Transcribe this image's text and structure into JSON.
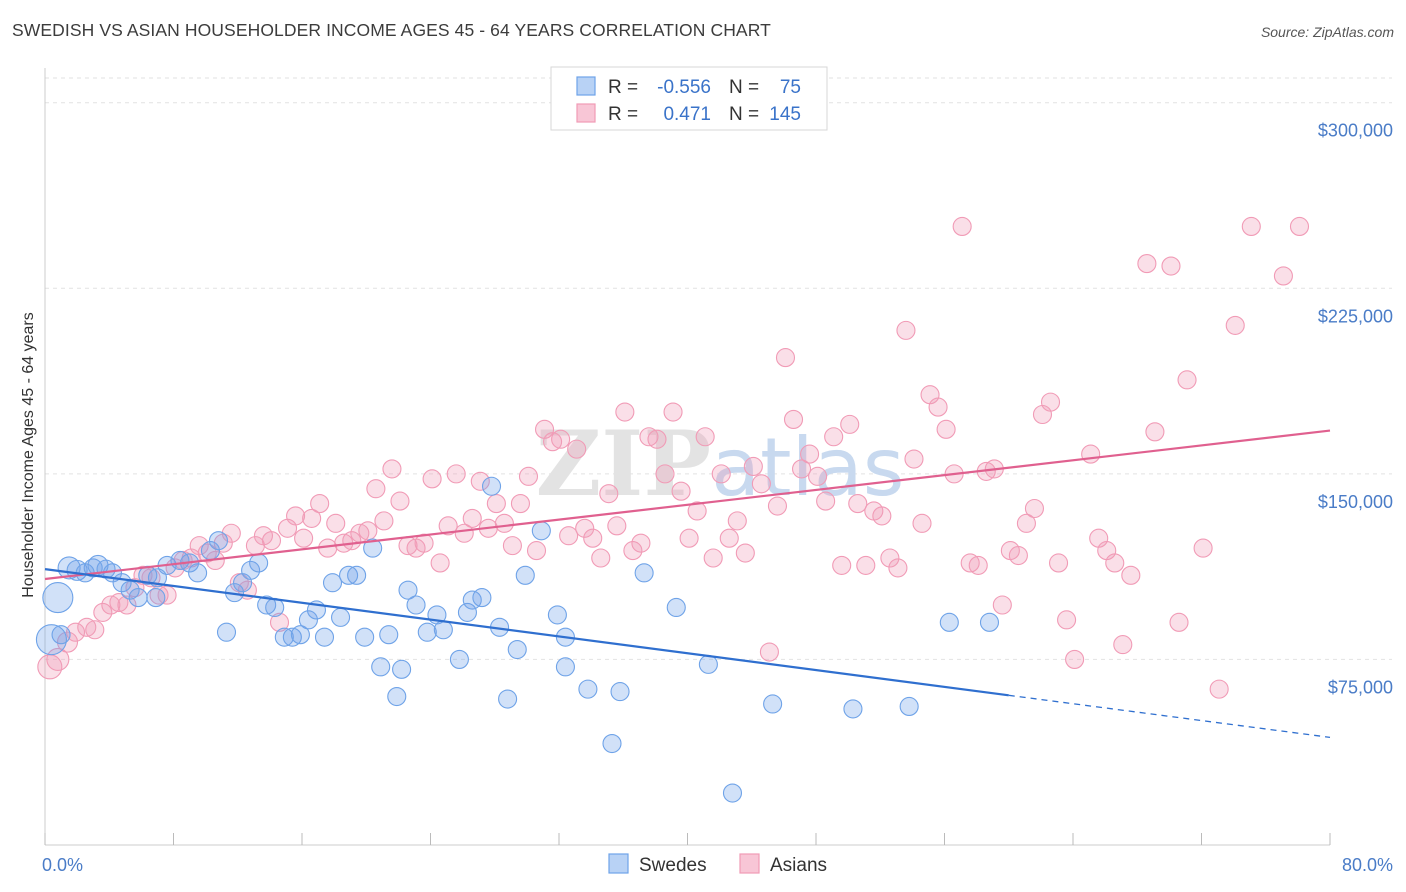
{
  "header": {
    "title": "SWEDISH VS ASIAN HOUSEHOLDER INCOME AGES 45 - 64 YEARS CORRELATION CHART",
    "source": "Source: ZipAtlas.com"
  },
  "legend": {
    "rows": [
      {
        "r_label": "R =",
        "r_value": "-0.556",
        "n_label": "N =",
        "n_value": "75"
      },
      {
        "r_label": "R =",
        "r_value": "0.471",
        "n_label": "N =",
        "n_value": "145"
      }
    ],
    "bottom": [
      "Swedes",
      "Asians"
    ]
  },
  "chart_data": {
    "type": "scatter",
    "title": "SWEDISH VS ASIAN HOUSEHOLDER INCOME AGES 45 - 64 YEARS CORRELATION CHART",
    "ylabel": "Householder Income Ages 45 - 64 years",
    "xlabel": "",
    "xlim": [
      0,
      80
    ],
    "ylim": [
      0,
      310000
    ],
    "x_tick_labels": [
      "0.0%",
      "80.0%"
    ],
    "y_ticks": [
      75000,
      150000,
      225000,
      300000
    ],
    "y_tick_labels": [
      "$75,000",
      "$150,000",
      "$225,000",
      "$300,000"
    ],
    "grid": "horizontal dashed",
    "legend_position": "top-center",
    "colors": {
      "swedes": "#6fa3e8",
      "asians": "#f19bb6",
      "swedes_line": "#2f6fcf",
      "asians_line": "#e0608f"
    },
    "series": [
      {
        "name": "Swedes",
        "r": -0.556,
        "n": 75,
        "trend": {
          "x0": 0,
          "y0": 111500,
          "x1": 60,
          "y1": 60500,
          "dashed_to_x": 80,
          "dashed_to_y": 43500
        },
        "points": [
          [
            0.4,
            83000,
            14
          ],
          [
            0.8,
            100000,
            14
          ],
          [
            1.5,
            112000,
            10
          ],
          [
            2,
            111000,
            9
          ],
          [
            2.5,
            110000,
            8
          ],
          [
            3.3,
            113000,
            9
          ],
          [
            3.8,
            111500,
            8
          ],
          [
            4.2,
            110000,
            8
          ],
          [
            4.8,
            106000,
            8
          ],
          [
            5.3,
            103000,
            8
          ],
          [
            5.8,
            100000,
            8
          ],
          [
            6.4,
            109000,
            8
          ],
          [
            6.9,
            100000,
            8
          ],
          [
            7.6,
            113000,
            8
          ],
          [
            8.4,
            115000,
            8
          ],
          [
            9.5,
            110000,
            8
          ],
          [
            10.3,
            119000,
            8
          ],
          [
            10.8,
            123000,
            8
          ],
          [
            11.3,
            86000,
            8
          ],
          [
            11.8,
            102000,
            8
          ],
          [
            12.3,
            106000,
            8
          ],
          [
            12.8,
            111000,
            8
          ],
          [
            13.3,
            114000,
            8
          ],
          [
            13.8,
            97000,
            8
          ],
          [
            14.3,
            96000,
            8
          ],
          [
            14.9,
            84000,
            8
          ],
          [
            15.4,
            84000,
            8
          ],
          [
            15.9,
            85000,
            8
          ],
          [
            16.4,
            91000,
            8
          ],
          [
            16.9,
            95000,
            8
          ],
          [
            17.4,
            84000,
            8
          ],
          [
            17.9,
            106000,
            8
          ],
          [
            18.4,
            92000,
            8
          ],
          [
            18.9,
            109000,
            8
          ],
          [
            19.4,
            109000,
            8
          ],
          [
            19.9,
            84000,
            8
          ],
          [
            20.4,
            120000,
            8
          ],
          [
            20.9,
            72000,
            8
          ],
          [
            21.4,
            85000,
            8
          ],
          [
            21.9,
            60000,
            8
          ],
          [
            22.2,
            71000,
            8
          ],
          [
            22.6,
            103000,
            8
          ],
          [
            23.1,
            97000,
            8
          ],
          [
            23.8,
            86000,
            8
          ],
          [
            24.4,
            93000,
            8
          ],
          [
            24.8,
            87000,
            8
          ],
          [
            25.8,
            75000,
            8
          ],
          [
            26.3,
            94000,
            8
          ],
          [
            26.6,
            99000,
            8
          ],
          [
            27.2,
            100000,
            8
          ],
          [
            27.8,
            145000,
            8
          ],
          [
            28.3,
            88000,
            8
          ],
          [
            28.8,
            59000,
            8
          ],
          [
            29.4,
            79000,
            8
          ],
          [
            29.9,
            109000,
            8
          ],
          [
            30.9,
            127000,
            8
          ],
          [
            31.9,
            93000,
            8
          ],
          [
            32.4,
            72000,
            8
          ],
          [
            32.4,
            84000,
            8
          ],
          [
            33.8,
            63000,
            8
          ],
          [
            35.3,
            41000,
            8
          ],
          [
            35.8,
            62000,
            8
          ],
          [
            37.3,
            110000,
            8
          ],
          [
            39.3,
            96000,
            8
          ],
          [
            41.3,
            73000,
            8
          ],
          [
            42.8,
            21000,
            8
          ],
          [
            45.3,
            57000,
            8
          ],
          [
            50.3,
            55000,
            8
          ],
          [
            53.8,
            56000,
            8
          ],
          [
            56.3,
            90000,
            8
          ],
          [
            58.8,
            90000,
            8
          ],
          [
            3,
            112000,
            8
          ],
          [
            9,
            114000,
            8
          ],
          [
            1,
            85000,
            8
          ],
          [
            7,
            108000,
            8
          ]
        ]
      },
      {
        "name": "Asians",
        "r": 0.471,
        "n": 145,
        "trend": {
          "x0": 0,
          "y0": 107500,
          "x1": 80,
          "y1": 167500
        },
        "points": [
          [
            0.3,
            72000,
            11
          ],
          [
            0.8,
            75000,
            10
          ],
          [
            1.4,
            82000,
            9
          ],
          [
            1.9,
            86000,
            8
          ],
          [
            2.6,
            88000,
            8
          ],
          [
            3.1,
            87000,
            8
          ],
          [
            3.6,
            94000,
            8
          ],
          [
            4.1,
            97000,
            8
          ],
          [
            4.6,
            98000,
            8
          ],
          [
            5.1,
            97000,
            8
          ],
          [
            5.6,
            104000,
            8
          ],
          [
            6.1,
            109000,
            8
          ],
          [
            6.6,
            108000,
            8
          ],
          [
            7.1,
            101000,
            8
          ],
          [
            7.6,
            101000,
            8
          ],
          [
            8.1,
            112000,
            8
          ],
          [
            8.6,
            115000,
            8
          ],
          [
            9.1,
            116000,
            8
          ],
          [
            9.6,
            121000,
            8
          ],
          [
            10.1,
            118000,
            8
          ],
          [
            10.6,
            115000,
            8
          ],
          [
            11.1,
            122000,
            8
          ],
          [
            11.6,
            126000,
            8
          ],
          [
            12.1,
            106000,
            8
          ],
          [
            12.6,
            103000,
            8
          ],
          [
            13.1,
            121000,
            8
          ],
          [
            13.6,
            125000,
            8
          ],
          [
            14.1,
            123000,
            8
          ],
          [
            14.6,
            90000,
            8
          ],
          [
            15.1,
            128000,
            8
          ],
          [
            15.6,
            133000,
            8
          ],
          [
            16.1,
            124000,
            8
          ],
          [
            16.6,
            132000,
            8
          ],
          [
            17.1,
            138000,
            8
          ],
          [
            17.6,
            120000,
            8
          ],
          [
            18.1,
            130000,
            8
          ],
          [
            18.6,
            122000,
            8
          ],
          [
            19.1,
            123000,
            8
          ],
          [
            19.6,
            126000,
            8
          ],
          [
            20.1,
            127000,
            8
          ],
          [
            20.6,
            144000,
            8
          ],
          [
            21.1,
            131000,
            8
          ],
          [
            21.6,
            152000,
            8
          ],
          [
            22.1,
            139000,
            8
          ],
          [
            22.6,
            121000,
            8
          ],
          [
            23.1,
            120000,
            8
          ],
          [
            23.6,
            122000,
            8
          ],
          [
            24.1,
            148000,
            8
          ],
          [
            24.6,
            114000,
            8
          ],
          [
            25.1,
            129000,
            8
          ],
          [
            25.6,
            150000,
            8
          ],
          [
            26.1,
            126000,
            8
          ],
          [
            26.6,
            132000,
            8
          ],
          [
            27.1,
            147000,
            8
          ],
          [
            27.6,
            128000,
            8
          ],
          [
            28.1,
            138000,
            8
          ],
          [
            28.6,
            130000,
            8
          ],
          [
            29.1,
            121000,
            8
          ],
          [
            29.6,
            138000,
            8
          ],
          [
            30.1,
            149000,
            8
          ],
          [
            30.6,
            119000,
            8
          ],
          [
            31.1,
            168000,
            8
          ],
          [
            31.6,
            163000,
            8
          ],
          [
            32.1,
            164000,
            8
          ],
          [
            32.6,
            125000,
            8
          ],
          [
            33.1,
            160000,
            8
          ],
          [
            33.6,
            128000,
            8
          ],
          [
            34.1,
            124000,
            8
          ],
          [
            34.6,
            116000,
            8
          ],
          [
            35.1,
            142000,
            8
          ],
          [
            35.6,
            129000,
            8
          ],
          [
            36.1,
            175000,
            8
          ],
          [
            36.6,
            119000,
            8
          ],
          [
            37.1,
            122000,
            8
          ],
          [
            37.6,
            165000,
            8
          ],
          [
            38.1,
            164000,
            8
          ],
          [
            38.6,
            150000,
            8
          ],
          [
            39.1,
            175000,
            8
          ],
          [
            39.6,
            143000,
            8
          ],
          [
            40.1,
            124000,
            8
          ],
          [
            40.6,
            135000,
            8
          ],
          [
            41.1,
            165000,
            8
          ],
          [
            41.6,
            116000,
            8
          ],
          [
            42.1,
            150000,
            8
          ],
          [
            42.6,
            124000,
            8
          ],
          [
            43.1,
            131000,
            8
          ],
          [
            43.6,
            118000,
            8
          ],
          [
            44.1,
            153000,
            8
          ],
          [
            44.6,
            146000,
            8
          ],
          [
            45.1,
            78000,
            8
          ],
          [
            45.6,
            137000,
            8
          ],
          [
            46.1,
            197000,
            8
          ],
          [
            46.6,
            172000,
            8
          ],
          [
            47.1,
            152000,
            8
          ],
          [
            47.6,
            158000,
            8
          ],
          [
            48.1,
            149000,
            8
          ],
          [
            48.6,
            139000,
            8
          ],
          [
            49.1,
            165000,
            8
          ],
          [
            49.6,
            113000,
            8
          ],
          [
            50.1,
            170000,
            8
          ],
          [
            50.6,
            138000,
            8
          ],
          [
            51.1,
            113000,
            8
          ],
          [
            51.6,
            135000,
            8
          ],
          [
            52.1,
            133000,
            8
          ],
          [
            52.6,
            116000,
            8
          ],
          [
            53.1,
            112000,
            8
          ],
          [
            53.6,
            208000,
            8
          ],
          [
            54.1,
            156000,
            8
          ],
          [
            54.6,
            130000,
            8
          ],
          [
            55.1,
            182000,
            8
          ],
          [
            55.6,
            177000,
            8
          ],
          [
            56.1,
            168000,
            8
          ],
          [
            56.6,
            150000,
            8
          ],
          [
            57.1,
            250000,
            8
          ],
          [
            57.6,
            114000,
            8
          ],
          [
            58.1,
            113000,
            8
          ],
          [
            58.6,
            151000,
            8
          ],
          [
            59.1,
            152000,
            8
          ],
          [
            59.6,
            97000,
            8
          ],
          [
            60.1,
            119000,
            8
          ],
          [
            60.6,
            117000,
            8
          ],
          [
            61.1,
            130000,
            8
          ],
          [
            61.6,
            136000,
            8
          ],
          [
            62.1,
            174000,
            8
          ],
          [
            62.6,
            179000,
            8
          ],
          [
            63.1,
            114000,
            8
          ],
          [
            63.6,
            91000,
            8
          ],
          [
            64.1,
            75000,
            8
          ],
          [
            65.1,
            158000,
            8
          ],
          [
            65.6,
            124000,
            8
          ],
          [
            66.1,
            119000,
            8
          ],
          [
            66.6,
            114000,
            8
          ],
          [
            67.1,
            81000,
            8
          ],
          [
            67.6,
            109000,
            8
          ],
          [
            68.6,
            235000,
            8
          ],
          [
            69.1,
            167000,
            8
          ],
          [
            70.1,
            234000,
            8
          ],
          [
            70.6,
            90000,
            8
          ],
          [
            71.1,
            188000,
            8
          ],
          [
            72.1,
            120000,
            8
          ],
          [
            73.1,
            63000,
            8
          ],
          [
            74.1,
            210000,
            8
          ],
          [
            75.1,
            250000,
            8
          ],
          [
            77.1,
            230000,
            8
          ],
          [
            78.1,
            250000,
            8
          ]
        ]
      }
    ]
  }
}
